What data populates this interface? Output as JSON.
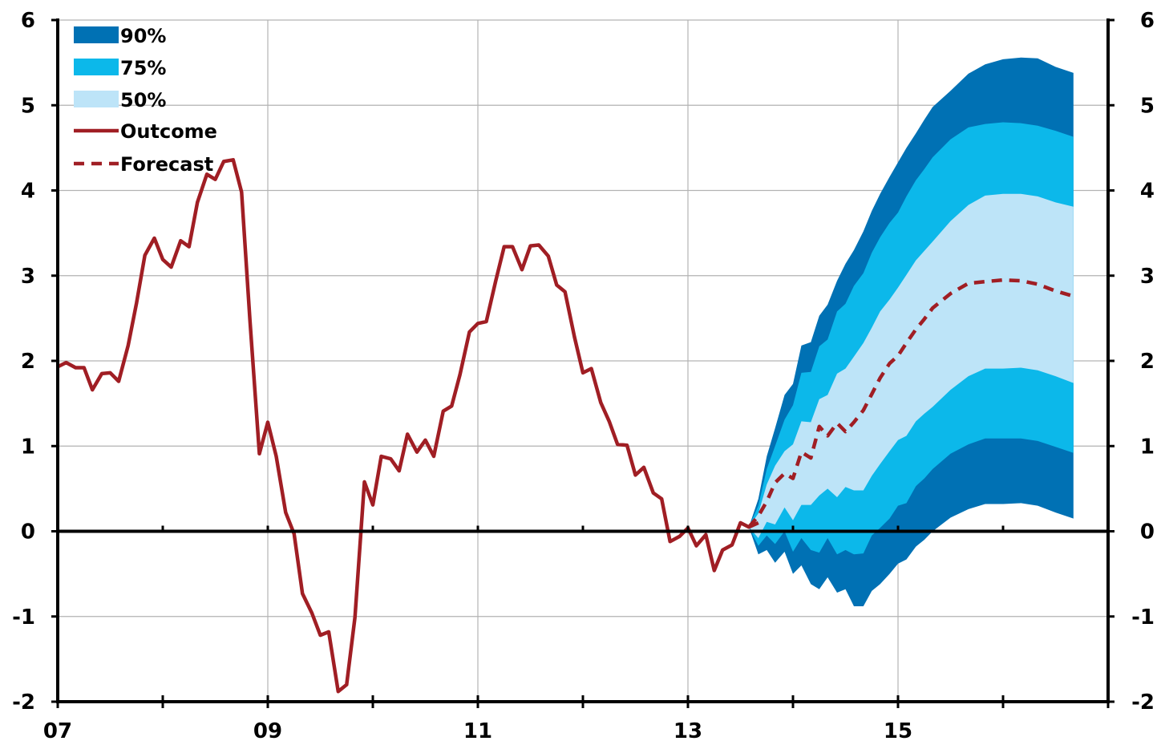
{
  "chart_data": {
    "type": "area",
    "title": "",
    "xlabel": "",
    "ylabel": "",
    "x_ticks": [
      "07",
      "09",
      "11",
      "13",
      "15"
    ],
    "x_tick_years": [
      2007,
      2009,
      2011,
      2013,
      2015
    ],
    "xlim": [
      2007,
      2017
    ],
    "ylim": [
      -2,
      6
    ],
    "y_ticks": [
      "-2",
      "-1",
      "0",
      "1",
      "2",
      "3",
      "4",
      "5",
      "6"
    ],
    "y_tick_values": [
      -2,
      -1,
      0,
      1,
      2,
      3,
      4,
      5,
      6
    ],
    "grid": true,
    "legend": {
      "position": "top-left",
      "items": [
        {
          "label": "90%",
          "kind": "band",
          "color": "#0071B4"
        },
        {
          "label": "75%",
          "kind": "band",
          "color": "#0CB8EA"
        },
        {
          "label": "50%",
          "kind": "band",
          "color": "#BDE4F8"
        },
        {
          "label": "Outcome",
          "kind": "line",
          "color": "#A01E24"
        },
        {
          "label": "Forecast",
          "kind": "dashed-line",
          "color": "#A01E24"
        }
      ]
    },
    "outcome": {
      "name": "Outcome",
      "x": [
        2007.0,
        2007.08,
        2007.17,
        2007.25,
        2007.33,
        2007.42,
        2007.5,
        2007.58,
        2007.67,
        2007.75,
        2007.83,
        2007.92,
        2008.0,
        2008.08,
        2008.17,
        2008.25,
        2008.33,
        2008.42,
        2008.5,
        2008.58,
        2008.67,
        2008.75,
        2008.83,
        2008.92,
        2009.0,
        2009.08,
        2009.17,
        2009.25,
        2009.33,
        2009.42,
        2009.5,
        2009.58,
        2009.67,
        2009.75,
        2009.83,
        2009.92,
        2010.0,
        2010.08,
        2010.17,
        2010.25,
        2010.33,
        2010.42,
        2010.5,
        2010.58,
        2010.67,
        2010.75,
        2010.83,
        2010.92,
        2011.0,
        2011.08,
        2011.17,
        2011.25,
        2011.33,
        2011.42,
        2011.5,
        2011.58,
        2011.67,
        2011.75,
        2011.83,
        2011.92,
        2012.0,
        2012.08,
        2012.17,
        2012.25,
        2012.33,
        2012.42,
        2012.5,
        2012.58,
        2012.67,
        2012.75,
        2012.83,
        2012.92,
        2013.0,
        2013.08,
        2013.17,
        2013.25,
        2013.33,
        2013.42,
        2013.5,
        2013.58,
        2013.67
      ],
      "values": [
        1.93,
        1.98,
        1.92,
        1.92,
        1.66,
        1.85,
        1.86,
        1.76,
        2.18,
        2.68,
        3.24,
        3.44,
        3.19,
        3.1,
        3.41,
        3.34,
        3.86,
        4.19,
        4.13,
        4.34,
        4.36,
        3.98,
        2.48,
        0.91,
        1.28,
        0.88,
        0.22,
        -0.03,
        -0.73,
        -0.96,
        -1.22,
        -1.18,
        -1.88,
        -1.8,
        -1.01,
        0.58,
        0.31,
        0.88,
        0.85,
        0.71,
        1.14,
        0.93,
        1.07,
        0.88,
        1.41,
        1.47,
        1.84,
        2.34,
        2.44,
        2.46,
        2.94,
        3.34,
        3.34,
        3.07,
        3.35,
        3.36,
        3.23,
        2.89,
        2.81,
        2.28,
        1.86,
        1.91,
        1.51,
        1.29,
        1.02,
        1.01,
        0.66,
        0.75,
        0.45,
        0.38,
        -0.12,
        -0.06,
        0.04,
        -0.17,
        -0.04,
        -0.46,
        -0.22,
        -0.16,
        0.1,
        0.05,
        0.1
      ]
    },
    "forecast": {
      "name": "Forecast",
      "x": [
        2013.58,
        2013.67,
        2013.75,
        2013.83,
        2013.92,
        2014.0,
        2014.08,
        2014.17,
        2014.25,
        2014.33,
        2014.42,
        2014.5,
        2014.58,
        2014.67,
        2014.75,
        2014.83,
        2014.92,
        2015.0,
        2015.08,
        2015.17,
        2015.25,
        2015.33,
        2015.5,
        2015.67,
        2015.83,
        2016.0,
        2016.17,
        2016.33,
        2016.5,
        2016.67
      ],
      "values": [
        0.05,
        0.18,
        0.35,
        0.57,
        0.68,
        0.62,
        0.93,
        0.86,
        1.23,
        1.12,
        1.27,
        1.17,
        1.28,
        1.42,
        1.61,
        1.8,
        1.97,
        2.06,
        2.21,
        2.37,
        2.49,
        2.62,
        2.79,
        2.91,
        2.93,
        2.95,
        2.94,
        2.9,
        2.82,
        2.76
      ]
    },
    "fan": {
      "x": [
        2013.58,
        2013.67,
        2013.75,
        2013.83,
        2013.92,
        2014.0,
        2014.08,
        2014.17,
        2014.25,
        2014.33,
        2014.42,
        2014.5,
        2014.58,
        2014.67,
        2014.75,
        2014.83,
        2014.92,
        2015.0,
        2015.08,
        2015.17,
        2015.25,
        2015.33,
        2015.5,
        2015.67,
        2015.83,
        2016.0,
        2016.17,
        2016.33,
        2016.5,
        2016.67
      ],
      "lo90": [
        0.05,
        -0.27,
        -0.22,
        -0.37,
        -0.24,
        -0.5,
        -0.4,
        -0.62,
        -0.68,
        -0.54,
        -0.72,
        -0.68,
        -0.88,
        -0.88,
        -0.7,
        -0.62,
        -0.5,
        -0.38,
        -0.33,
        -0.18,
        -0.1,
        0.0,
        0.16,
        0.26,
        0.32,
        0.32,
        0.33,
        0.3,
        0.22,
        0.15
      ],
      "lo75": [
        0.05,
        -0.17,
        -0.05,
        -0.15,
        0.0,
        -0.24,
        -0.08,
        -0.22,
        -0.25,
        -0.08,
        -0.27,
        -0.22,
        -0.27,
        -0.26,
        -0.05,
        0.04,
        0.15,
        0.3,
        0.33,
        0.53,
        0.62,
        0.73,
        0.91,
        1.02,
        1.09,
        1.09,
        1.09,
        1.06,
        0.99,
        0.92
      ],
      "lo50": [
        0.05,
        -0.08,
        0.11,
        0.08,
        0.28,
        0.13,
        0.31,
        0.31,
        0.42,
        0.5,
        0.4,
        0.52,
        0.48,
        0.48,
        0.65,
        0.79,
        0.94,
        1.07,
        1.12,
        1.29,
        1.38,
        1.46,
        1.66,
        1.82,
        1.91,
        1.91,
        1.92,
        1.89,
        1.82,
        1.74
      ],
      "hi50": [
        0.05,
        0.21,
        0.55,
        0.77,
        0.94,
        1.02,
        1.29,
        1.28,
        1.55,
        1.6,
        1.85,
        1.91,
        2.05,
        2.21,
        2.39,
        2.58,
        2.72,
        2.86,
        3.01,
        3.18,
        3.29,
        3.4,
        3.64,
        3.83,
        3.94,
        3.96,
        3.96,
        3.93,
        3.86,
        3.81
      ],
      "hi75": [
        0.05,
        0.3,
        0.73,
        1.0,
        1.31,
        1.48,
        1.86,
        1.87,
        2.17,
        2.25,
        2.58,
        2.67,
        2.88,
        3.03,
        3.27,
        3.45,
        3.62,
        3.74,
        3.93,
        4.12,
        4.25,
        4.39,
        4.6,
        4.74,
        4.78,
        4.8,
        4.79,
        4.76,
        4.7,
        4.63
      ],
      "hi90": [
        0.05,
        0.38,
        0.88,
        1.21,
        1.6,
        1.73,
        2.18,
        2.22,
        2.53,
        2.66,
        2.94,
        3.14,
        3.3,
        3.52,
        3.76,
        3.96,
        4.16,
        4.33,
        4.5,
        4.67,
        4.83,
        4.98,
        5.17,
        5.37,
        5.48,
        5.54,
        5.56,
        5.55,
        5.45,
        5.38
      ]
    }
  }
}
